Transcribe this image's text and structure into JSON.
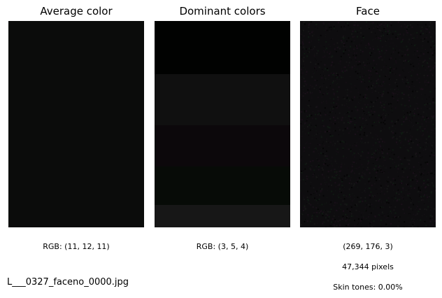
{
  "panels": {
    "average": {
      "title": "Average color",
      "swatch_color": "#0b0c0b",
      "caption": "RGB: (11, 12, 11)"
    },
    "dominant": {
      "title": "Dominant colors",
      "bands": [
        {
          "color": "#010201",
          "fraction": 0.258
        },
        {
          "color": "#101010",
          "fraction": 0.247
        },
        {
          "color": "#0c080b",
          "fraction": 0.2
        },
        {
          "color": "#070b07",
          "fraction": 0.186
        },
        {
          "color": "#171717",
          "fraction": 0.109
        }
      ],
      "caption": "RGB: (3, 5, 4)"
    },
    "face": {
      "title": "Face",
      "base_color": "#0e0d0f",
      "noise_colors": [
        "#1a0f19",
        "#0f1a12",
        "#161616",
        "#050505",
        "#140e14"
      ],
      "shape_caption": "(269, 176, 3)",
      "pixels_caption": "47,344 pixels",
      "skin_caption": "Skin tones: 0.00%"
    }
  },
  "filename": "L___0327_faceno_0000.jpg"
}
